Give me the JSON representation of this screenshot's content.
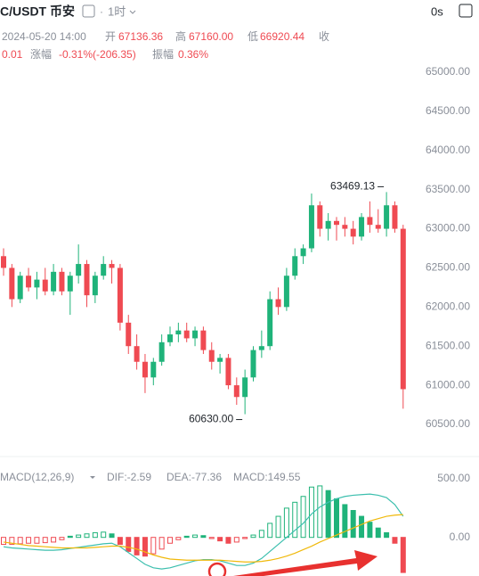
{
  "header": {
    "pair": "C/USDT 币安",
    "interval": "1时",
    "countdown": "0s"
  },
  "info": {
    "time": "2024-05-20 14:00",
    "open_label": "开",
    "open": "67136.36",
    "high_label": "高",
    "high": "67160.00",
    "low_label": "低",
    "low": "66920.44",
    "close_label": "收",
    "last": "0.01",
    "change_label": "涨幅",
    "change": "-0.31%(-206.35)",
    "amp_label": "振幅",
    "amp": "0.36%"
  },
  "chart_data": [
    {
      "type": "candlestick",
      "up_color": "#1fb37a",
      "down_color": "#ef4a52",
      "open": [
        62650,
        62500,
        62100,
        62400,
        62250,
        62350,
        62200,
        62450,
        62200,
        62400,
        62550,
        62150,
        62400,
        62550,
        62500,
        61800,
        61500,
        61300,
        61100,
        61300,
        61550,
        61650,
        61700,
        61600,
        61700,
        61450,
        61300,
        61350,
        61000,
        60850,
        61100,
        61450,
        61500,
        62100,
        62000,
        62400,
        62650,
        62750,
        63300,
        63000,
        63100,
        63050,
        63000,
        62900,
        63150,
        63050,
        63000,
        63300,
        63000
      ],
      "high": [
        62750,
        62550,
        62450,
        62500,
        62450,
        62500,
        62550,
        62500,
        62450,
        62800,
        62600,
        62450,
        62650,
        62600,
        62550,
        61900,
        61650,
        61400,
        61350,
        61650,
        61750,
        61800,
        61800,
        61750,
        61750,
        61550,
        61400,
        61400,
        61100,
        61200,
        61500,
        61700,
        62200,
        62250,
        62500,
        62750,
        62800,
        63450,
        63350,
        63200,
        63150,
        63150,
        63100,
        63200,
        63350,
        63250,
        63469.13,
        63350,
        63050
      ],
      "low": [
        62400,
        62000,
        62050,
        62200,
        62100,
        62150,
        62150,
        62150,
        61900,
        62300,
        62000,
        62050,
        62350,
        62300,
        61700,
        61400,
        61200,
        60900,
        61000,
        61250,
        61500,
        61550,
        61550,
        61500,
        61400,
        61200,
        61150,
        60950,
        60750,
        60630,
        61050,
        61350,
        61450,
        61900,
        61950,
        62350,
        62550,
        62700,
        62900,
        62850,
        62850,
        62900,
        62800,
        62850,
        62950,
        62950,
        62900,
        62950,
        60700
      ],
      "close": [
        62500,
        62100,
        62400,
        62250,
        62350,
        62200,
        62450,
        62200,
        62400,
        62550,
        62150,
        62400,
        62550,
        62500,
        61800,
        61500,
        61300,
        61100,
        61300,
        61550,
        61650,
        61700,
        61600,
        61700,
        61450,
        61300,
        61350,
        61000,
        60850,
        61100,
        61450,
        61500,
        62100,
        62000,
        62400,
        62650,
        62750,
        63300,
        63000,
        63100,
        63050,
        63000,
        62900,
        63150,
        63050,
        63000,
        63300,
        63000,
        60950
      ],
      "ylim": [
        60340,
        65240
      ],
      "yticks": [
        {
          "value": 60500,
          "label": "60500.00"
        },
        {
          "value": 61000,
          "label": "61000.00"
        },
        {
          "value": 61500,
          "label": "61500.00"
        },
        {
          "value": 62000,
          "label": "62000.00"
        },
        {
          "value": 62500,
          "label": "62500.00"
        },
        {
          "value": 63000,
          "label": "63000.00"
        },
        {
          "value": 63500,
          "label": "63500.00"
        },
        {
          "value": 64000,
          "label": "64000.00"
        },
        {
          "value": 64500,
          "label": "64500.00"
        },
        {
          "value": 65000,
          "label": "65000.00"
        }
      ],
      "max_marker": 63469.13,
      "min_marker": {
        "value": 60630,
        "label": "60630.00"
      }
    },
    {
      "type": "macd",
      "title": "MACD(12,26,9)",
      "up_color": "#1fb37a",
      "down_color": "#ef4a52",
      "series": [
        {
          "name": "DIF:-2.59",
          "color": "#3cbfae",
          "values": [
            -80,
            -90,
            -95,
            -100,
            -105,
            -110,
            -110,
            -105,
            -95,
            -85,
            -75,
            -65,
            -55,
            -50,
            -80,
            -130,
            -180,
            -230,
            -260,
            -270,
            -260,
            -240,
            -220,
            -200,
            -190,
            -190,
            -200,
            -220,
            -240,
            -240,
            -220,
            -180,
            -120,
            -60,
            0,
            60,
            120,
            200,
            260,
            300,
            330,
            350,
            360,
            365,
            370,
            360,
            340,
            280,
            180
          ]
        },
        {
          "name": "DEA:-77.36",
          "color": "#f0b90b",
          "values": [
            -40,
            -50,
            -60,
            -70,
            -75,
            -80,
            -85,
            -90,
            -90,
            -90,
            -90,
            -85,
            -80,
            -75,
            -75,
            -85,
            -100,
            -125,
            -150,
            -170,
            -185,
            -190,
            -195,
            -195,
            -195,
            -195,
            -195,
            -200,
            -205,
            -210,
            -210,
            -205,
            -195,
            -180,
            -160,
            -135,
            -105,
            -75,
            -40,
            -10,
            20,
            50,
            80,
            110,
            140,
            160,
            180,
            190,
            195
          ]
        },
        {
          "name": "MACD:149.55",
          "color": "#1fb37a",
          "values": [
            -60,
            -60,
            -55,
            -50,
            -50,
            -45,
            -40,
            -20,
            10,
            20,
            30,
            40,
            45,
            30,
            -60,
            -120,
            -150,
            -160,
            -140,
            -100,
            -50,
            -20,
            10,
            20,
            15,
            -10,
            -30,
            -50,
            -40,
            -10,
            20,
            60,
            120,
            180,
            250,
            300,
            350,
            430,
            440,
            400,
            330,
            280,
            230,
            180,
            130,
            80,
            40,
            -50,
            -300
          ]
        }
      ],
      "ylim": [
        -330,
        630
      ],
      "yticks": [
        {
          "value": 0,
          "label": "0.00"
        },
        {
          "value": 500,
          "label": "500.00"
        }
      ]
    }
  ]
}
